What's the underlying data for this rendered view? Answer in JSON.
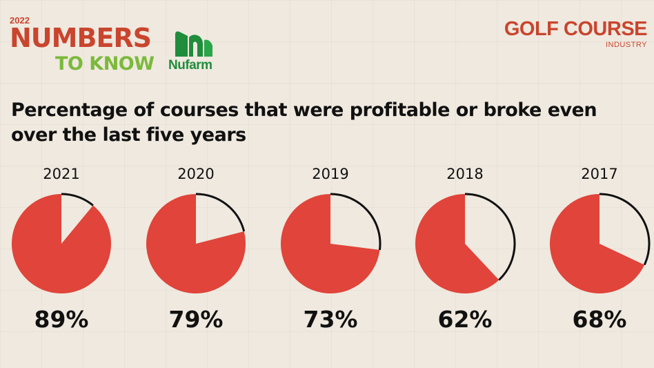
{
  "brand": {
    "year": "2022",
    "line1": "NUMBERS",
    "line2": "TO KNOW",
    "sponsor": "Nufarm",
    "publisher": "GOLF COURSE",
    "publisher_sub": "INDUSTRY"
  },
  "colors": {
    "accent": "#e0443a",
    "brand_red": "#c9452e",
    "brand_green": "#7bb93a",
    "sponsor_green": "#1f8d3b"
  },
  "chart_data": {
    "type": "pie",
    "title": "Percentage of courses that were profitable or broke even over the last five years",
    "categories": [
      "2021",
      "2020",
      "2019",
      "2018",
      "2017"
    ],
    "values": [
      89,
      79,
      73,
      62,
      68
    ],
    "labels": [
      "89%",
      "79%",
      "73%",
      "62%",
      "68%"
    ]
  }
}
